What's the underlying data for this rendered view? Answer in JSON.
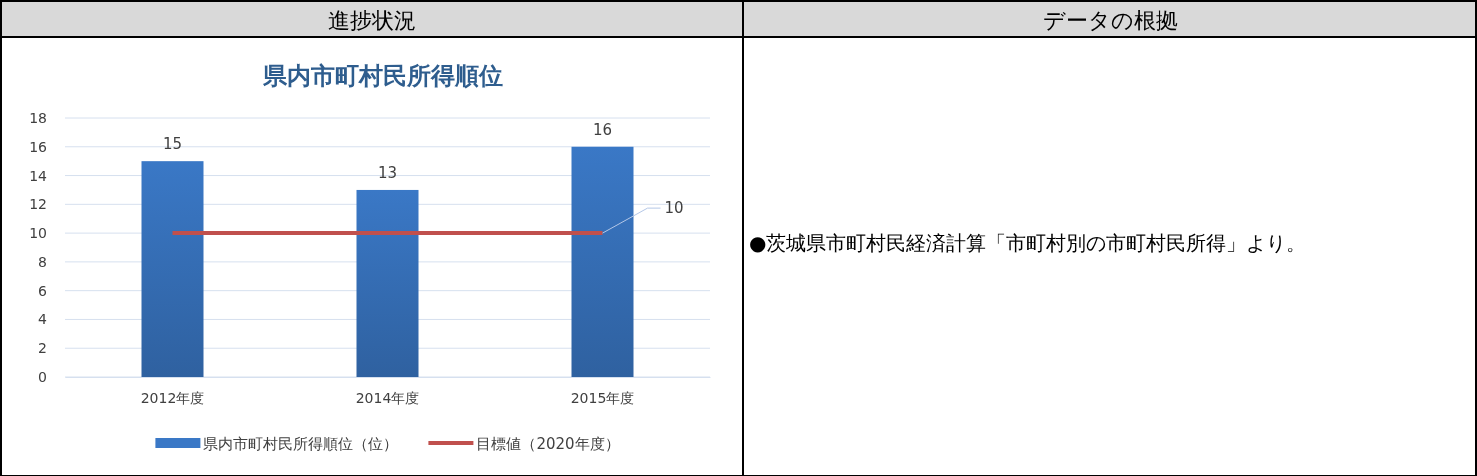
{
  "chart_data": {
    "type": "bar",
    "title": "県内市町村民所得順位",
    "categories": [
      "2012年度",
      "2014年度",
      "2015年度"
    ],
    "series": [
      {
        "name": "県内市町村民所得順位（位）",
        "color": "#3a78c6",
        "values": [
          15,
          13,
          16
        ],
        "value_labels": [
          "15",
          "13",
          "16"
        ]
      },
      {
        "name": "目標値（2020年度）",
        "type": "line",
        "color": "#c0504d",
        "values": [
          10,
          10,
          10
        ],
        "value_labels": [
          null,
          null,
          "10"
        ],
        "marker": "none"
      }
    ],
    "ylim": [
      0,
      18
    ],
    "yticks": [
      0,
      2,
      4,
      6,
      8,
      10,
      12,
      14,
      16,
      18
    ],
    "grid": "y",
    "legend": "bottom",
    "annotations": [
      "進捗状況",
      "データの根拠",
      "●茨城県市町村民経済計算「市町村別の市町村民所得」より。"
    ]
  }
}
